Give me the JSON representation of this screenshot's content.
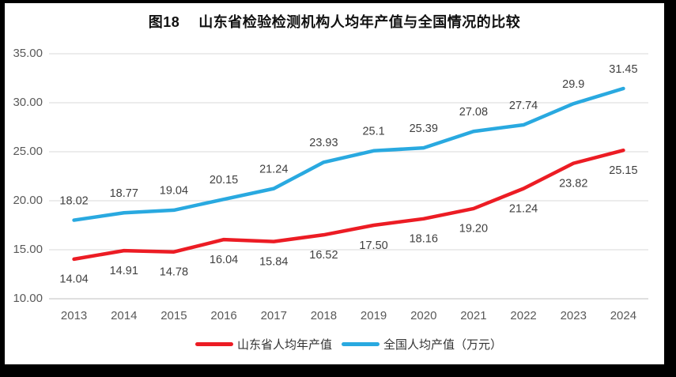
{
  "window": {
    "outer_background": "#000000",
    "canvas_background": "#ffffff"
  },
  "chart_data": {
    "type": "line",
    "title": "图18　 山东省检验检测机构人均年产值与全国情况的比较",
    "categories": [
      "2013",
      "2014",
      "2015",
      "2016",
      "2017",
      "2018",
      "2019",
      "2020",
      "2021",
      "2022",
      "2023",
      "2024"
    ],
    "series": [
      {
        "name": "山东省人均年产值",
        "color": "#EC1C24",
        "values": [
          14.04,
          14.91,
          14.78,
          16.04,
          15.84,
          16.52,
          17.5,
          18.16,
          19.2,
          21.24,
          23.82,
          25.15
        ],
        "labels": [
          "14.04",
          "14.91",
          "14.78",
          "16.04",
          "15.84",
          "16.52",
          "17.50",
          "18.16",
          "19.20",
          "21.24",
          "23.82",
          "25.15"
        ],
        "label_position": "below"
      },
      {
        "name": "全国人均产值（万元）",
        "color": "#29A9E0",
        "values": [
          18.02,
          18.77,
          19.04,
          20.15,
          21.24,
          23.93,
          25.1,
          25.39,
          27.08,
          27.74,
          29.9,
          31.45
        ],
        "labels": [
          "18.02",
          "18.77",
          "19.04",
          "20.15",
          "21.24",
          "23.93",
          "25.1",
          "25.39",
          "27.08",
          "27.74",
          "29.9",
          "31.45"
        ],
        "label_position": "above"
      }
    ],
    "xlabel": "",
    "ylabel": "",
    "ylim": [
      10,
      35
    ],
    "ytick_step": 5,
    "yticks": [
      "10.00",
      "15.00",
      "20.00",
      "25.00",
      "30.00",
      "35.00"
    ],
    "grid": true,
    "legend_position": "bottom",
    "colors": {
      "gridline": "#D9D9D9",
      "axis_line": "#BFBFBF",
      "axis_labels": "#595959",
      "data_labels": "#404040",
      "title": "#111111",
      "legend_text": "#333333"
    }
  }
}
